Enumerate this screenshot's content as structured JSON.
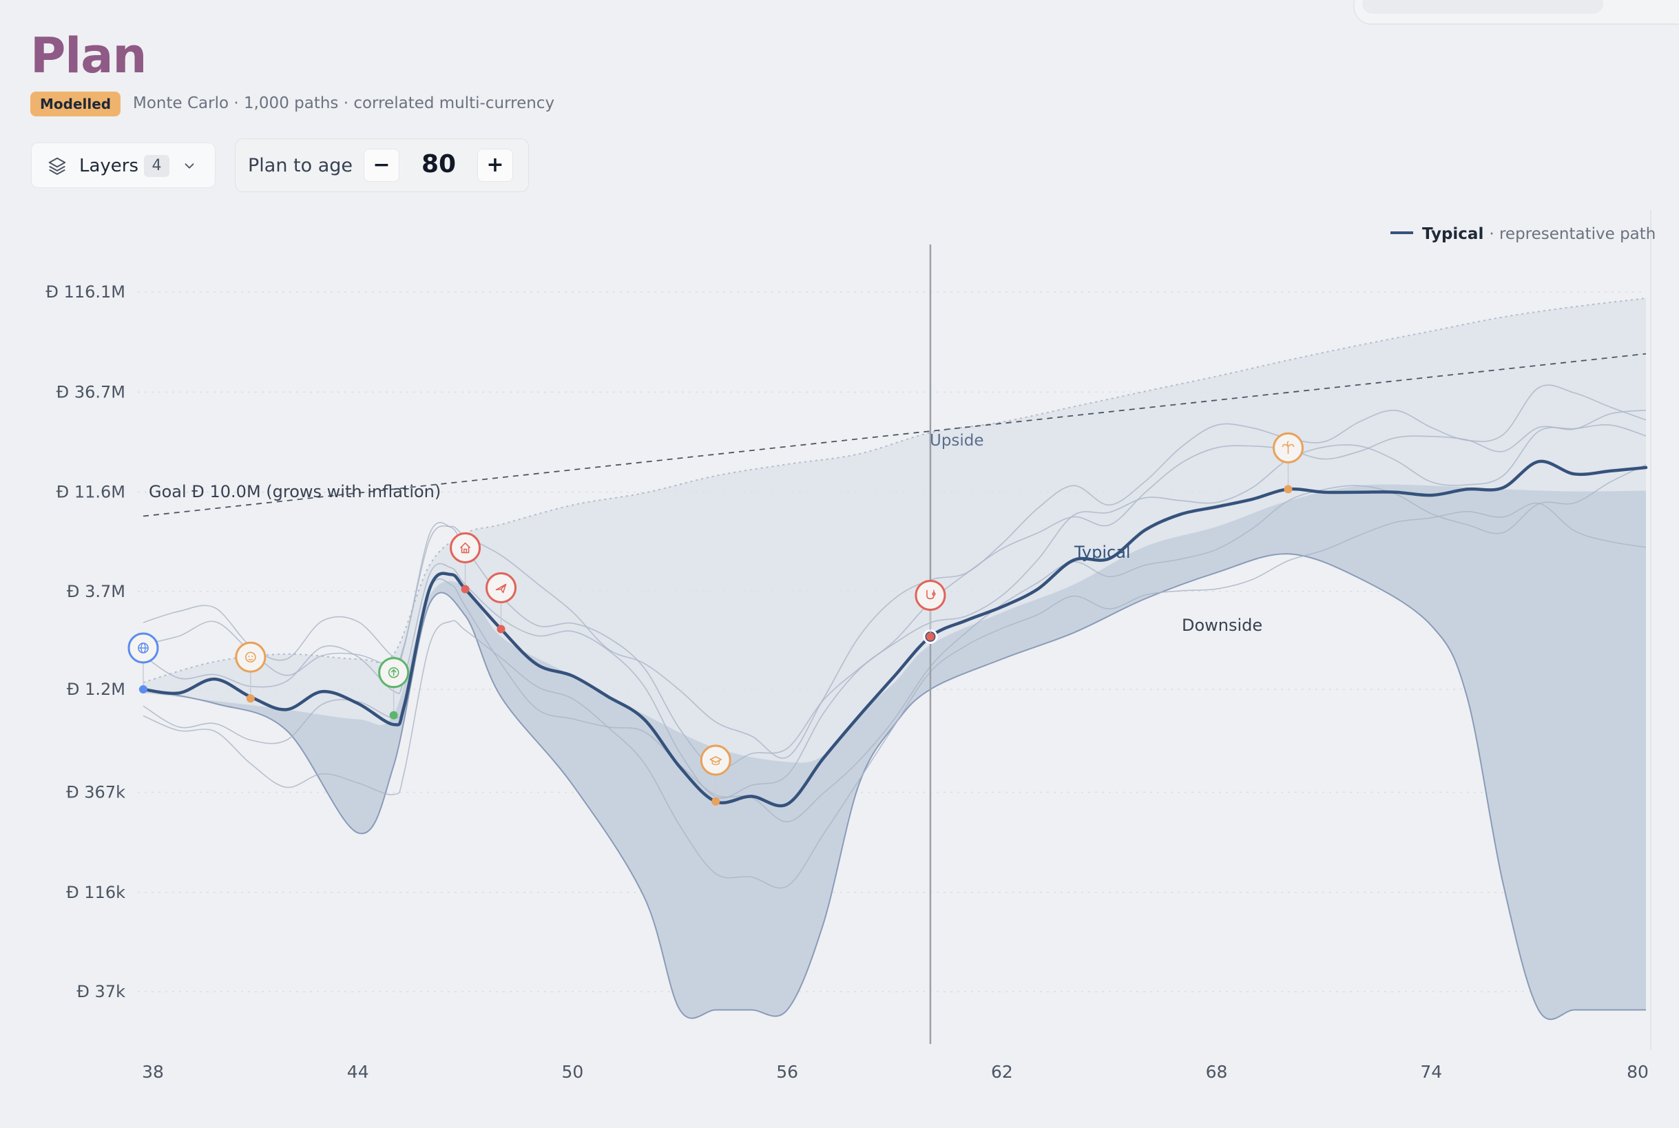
{
  "header": {
    "title": "Plan",
    "badge": "Modelled",
    "subtitle": "Monte Carlo · 1,000 paths · correlated multi-currency"
  },
  "controls": {
    "layers_label": "Layers",
    "layers_count": "4",
    "plan_to_age_label": "Plan to age",
    "plan_to_age_value": "80",
    "minus_label": "−",
    "plus_label": "+"
  },
  "colors": {
    "accent": "#35527c",
    "band": "#b8c4d7",
    "outer_band": "#dce1e9"
  },
  "chart_data": {
    "type": "line",
    "legend": {
      "series_name": "Typical",
      "description": "· representative path",
      "placement": "top-right"
    },
    "y_axis": {
      "scale": "log",
      "currency_symbol": "Đ",
      "ticks": [
        {
          "label": "116.1M",
          "value": 116100000
        },
        {
          "label": "36.7M",
          "value": 36700000
        },
        {
          "label": "11.6M",
          "value": 11600000
        },
        {
          "label": "3.7M",
          "value": 3700000
        },
        {
          "label": "1.2M",
          "value": 1200000
        },
        {
          "label": "367k",
          "value": 367000
        },
        {
          "label": "116k",
          "value": 116000
        },
        {
          "label": "37k",
          "value": 37000
        }
      ],
      "grid": true
    },
    "x_axis": {
      "ticks": [
        38,
        44,
        50,
        56,
        62,
        68,
        74,
        80
      ],
      "xlim": [
        38,
        80
      ]
    },
    "goal": {
      "label": "Goal Đ 10.0M (grows with inflation)",
      "start_value": 8800000,
      "end_value": 57000000
    },
    "band_labels": {
      "upside": "Upside",
      "typical": "Typical",
      "downside": "Downside"
    },
    "current_age": 60,
    "typical": {
      "x": [
        38,
        39,
        40,
        41,
        42,
        43,
        44,
        45,
        45.3,
        46,
        46.6,
        47,
        48,
        49,
        50,
        51,
        52,
        53,
        54,
        55,
        56,
        57,
        58,
        59,
        60,
        61,
        62,
        63,
        64,
        65,
        66,
        67,
        68,
        69,
        70,
        71,
        72,
        73,
        74,
        75,
        76,
        77,
        78,
        79,
        80
      ],
      "y": [
        1200000,
        1150000,
        1350000,
        1100000,
        950000,
        1170000,
        1020000,
        800000,
        1000000,
        3800000,
        4500000,
        3800000,
        2400000,
        1600000,
        1400000,
        1100000,
        850000,
        490000,
        330000,
        350000,
        320000,
        540000,
        880000,
        1400000,
        2200000,
        2650000,
        3100000,
        3800000,
        5300000,
        5400000,
        7500000,
        9000000,
        9800000,
        10700000,
        12000000,
        11600000,
        11600000,
        11600000,
        11200000,
        12000000,
        12200000,
        16500000,
        14300000,
        14800000,
        15400000
      ]
    },
    "upside": {
      "x": [
        38,
        40,
        42,
        44,
        45,
        46,
        47,
        48,
        50,
        52,
        54,
        56,
        58,
        60,
        62,
        64,
        66,
        68,
        70,
        72,
        74,
        76,
        78,
        80
      ],
      "y": [
        1300000,
        1650000,
        1800000,
        1700000,
        1800000,
        5000000,
        7200000,
        8000000,
        10000000,
        11500000,
        14000000,
        16000000,
        18000000,
        23000000,
        26000000,
        31000000,
        37000000,
        44000000,
        53000000,
        63000000,
        74000000,
        87000000,
        98000000,
        108000000
      ]
    },
    "median_upper": {
      "x": [
        38,
        40,
        42,
        44,
        45,
        46,
        47,
        48,
        50,
        52,
        54,
        56,
        57,
        58,
        59,
        60,
        62,
        64,
        66,
        68,
        70,
        72,
        74,
        76,
        78,
        80
      ],
      "y": [
        1150000,
        1050000,
        950000,
        850000,
        900000,
        3500000,
        3900000,
        2200000,
        1400000,
        900000,
        610000,
        520000,
        560000,
        900000,
        1300000,
        2000000,
        2900000,
        4000000,
        6200000,
        7800000,
        10500000,
        12500000,
        12500000,
        12000000,
        11700000,
        11800000
      ]
    },
    "downside": {
      "x": [
        38,
        40,
        42,
        44,
        45,
        46,
        47,
        48,
        50,
        52,
        53,
        54,
        55,
        56,
        57,
        58,
        59,
        60,
        62,
        64,
        66,
        68,
        70,
        72,
        74,
        75,
        76,
        77,
        78,
        79,
        80
      ],
      "y": [
        1200000,
        1020000,
        750000,
        230000,
        500000,
        3200000,
        2800000,
        1100000,
        400000,
        110000,
        30000,
        30000,
        30000,
        30000,
        80000,
        400000,
        800000,
        1200000,
        1700000,
        2300000,
        3400000,
        4600000,
        5700000,
        4300000,
        2500000,
        1100000,
        130000,
        30000,
        30000,
        30000,
        30000
      ]
    },
    "events": [
      {
        "name": "relocation",
        "age": 38,
        "value": 1200000,
        "color": "#5b8def",
        "icon": "globe-icon"
      },
      {
        "name": "child",
        "age": 41,
        "value": 1080000,
        "color": "#e8a25a",
        "icon": "baby-icon"
      },
      {
        "name": "income-boost",
        "age": 45,
        "value": 890000,
        "color": "#5cb56c",
        "icon": "arrow-up-icon"
      },
      {
        "name": "home",
        "age": 47,
        "value": 3800000,
        "color": "#e0645a",
        "icon": "house-icon"
      },
      {
        "name": "travel",
        "age": 48,
        "value": 2400000,
        "color": "#e0645a",
        "icon": "plane-icon"
      },
      {
        "name": "education",
        "age": 54,
        "value": 330000,
        "color": "#e8a25a",
        "icon": "graduation-icon"
      },
      {
        "name": "health",
        "age": 60,
        "value": 2200000,
        "color": "#e0645a",
        "icon": "stethoscope-icon"
      },
      {
        "name": "retirement",
        "age": 70,
        "value": 12000000,
        "color": "#e8a25a",
        "icon": "palm-icon"
      }
    ]
  }
}
